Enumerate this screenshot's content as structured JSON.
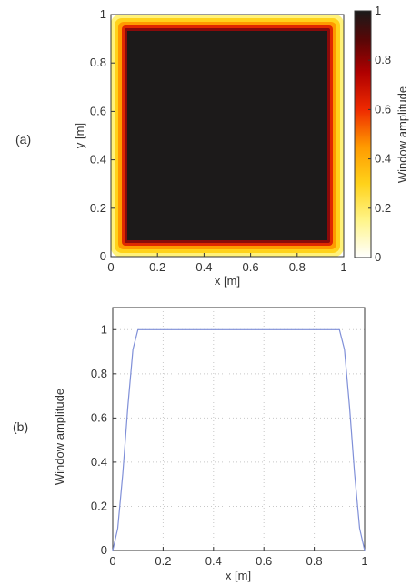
{
  "panel_labels": [
    "(a)",
    "(b)"
  ],
  "chart_data": [
    {
      "type": "heatmap",
      "panel": "(a)",
      "xlabel": "x [m]",
      "ylabel": "y [m]",
      "xlim": [
        0,
        1
      ],
      "ylim": [
        0,
        1
      ],
      "xticks": [
        0,
        0.2,
        0.4,
        0.6,
        0.8,
        1
      ],
      "yticks": [
        0,
        0.2,
        0.4,
        0.6,
        0.8,
        1
      ],
      "grid": false,
      "colorbar": {
        "label": "Window amplitude",
        "range": [
          0,
          1
        ],
        "ticks": [
          0,
          0.2,
          0.4,
          0.6,
          0.8,
          1
        ],
        "colormap": [
          "#ffffff",
          "#fff58a",
          "#ffd21a",
          "#ff9a00",
          "#ee2a00",
          "#b00000",
          "#5a0606",
          "#1a1a1a"
        ]
      },
      "description_values": {
        "taper_width": 0.1,
        "plateau_amplitude": 1,
        "edge_amplitude": 0
      }
    },
    {
      "type": "line",
      "panel": "(b)",
      "xlabel": "x [m]",
      "ylabel": "Window amplitude",
      "xlim": [
        0,
        1
      ],
      "ylim": [
        0,
        1.1
      ],
      "xticks": [
        0,
        0.2,
        0.4,
        0.6,
        0.8,
        1
      ],
      "yticks": [
        0,
        0.2,
        0.4,
        0.6,
        0.8,
        1
      ],
      "grid": true,
      "series": [
        {
          "color": "#7f8fd8",
          "x": [
            0,
            0.02,
            0.04,
            0.06,
            0.08,
            0.1,
            0.2,
            0.3,
            0.4,
            0.5,
            0.6,
            0.7,
            0.8,
            0.9,
            0.92,
            0.94,
            0.96,
            0.98,
            1
          ],
          "y": [
            0,
            0.1,
            0.35,
            0.65,
            0.91,
            1,
            1,
            1,
            1,
            1,
            1,
            1,
            1,
            1,
            0.91,
            0.65,
            0.35,
            0.1,
            0
          ]
        }
      ]
    }
  ]
}
